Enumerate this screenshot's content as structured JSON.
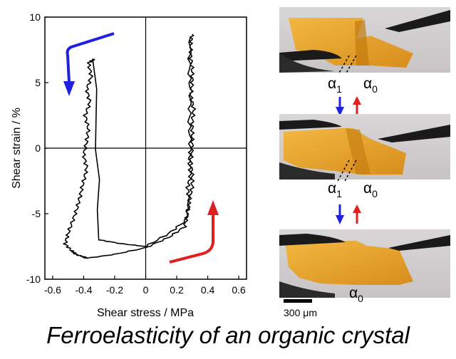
{
  "chart_data": {
    "type": "line",
    "xlabel": "Shear stress / MPa",
    "ylabel": "Shear strain / %",
    "xlim": [
      -0.65,
      0.65
    ],
    "ylim": [
      -10,
      10
    ],
    "xticks": [
      -0.6,
      -0.4,
      -0.2,
      0,
      0.2,
      0.4,
      0.6
    ],
    "xtick_labels": [
      "-0.6",
      "-0.4",
      "-0.2",
      "0",
      "0.2",
      "0.4",
      "0.6"
    ],
    "yticks": [
      -10,
      -5,
      0,
      5,
      10
    ],
    "ytick_labels": [
      "-10",
      "-5",
      "0",
      "5",
      "10"
    ],
    "grid": false,
    "series": [
      {
        "color": "#000000",
        "x": [
          0.3,
          0.29,
          0.29,
          0.3,
          0.3,
          0.29,
          0.31,
          0.3,
          0.3,
          0.3,
          0.29,
          0.3,
          0.3,
          0.28,
          0.26,
          0.15,
          0.0,
          -0.15,
          -0.3,
          -0.33,
          -0.37,
          -0.35,
          -0.38,
          -0.36,
          -0.39,
          -0.37,
          -0.38,
          -0.4,
          -0.38,
          -0.4,
          -0.42,
          -0.44,
          -0.47,
          -0.5,
          -0.52,
          -0.48,
          -0.45,
          -0.4,
          -0.38,
          -0.2,
          0.0,
          0.15,
          0.25,
          0.27,
          0.28,
          0.27,
          0.29,
          0.28,
          0.29,
          0.28,
          0.29,
          0.28,
          0.29
        ],
        "y": [
          8.7,
          8.0,
          7.0,
          6.0,
          5.0,
          4.0,
          3.0,
          2.0,
          1.0,
          0.0,
          -1.0,
          -2.0,
          -3.0,
          -4.0,
          -5.5,
          -6.5,
          -7.5,
          -7.3,
          -7.0,
          6.8,
          6.5,
          5.5,
          4.5,
          3.5,
          2.5,
          1.5,
          0.5,
          -0.5,
          -1.5,
          -2.5,
          -3.5,
          -4.5,
          -5.5,
          -6.5,
          -7.3,
          -7.8,
          -8.1,
          -8.3,
          -8.4,
          -8.1,
          -7.6,
          -6.8,
          -6.0,
          -5.0,
          -4.0,
          -3.0,
          -2.0,
          -1.0,
          0.0,
          2.0,
          4.0,
          6.0,
          8.5
        ]
      }
    ],
    "arrows": [
      {
        "color": "#2020e0",
        "meaning": "loading direction"
      },
      {
        "color": "#e02020",
        "meaning": "unloading direction"
      }
    ]
  },
  "photos": {
    "panel1": {
      "labels": [
        "α",
        "α"
      ],
      "subscripts": [
        "1",
        "0"
      ]
    },
    "panel2": {
      "labels": [
        "α",
        "α"
      ],
      "subscripts": [
        "1",
        "0"
      ]
    },
    "panel3": {
      "labels": [
        "α"
      ],
      "subscripts": [
        "0"
      ]
    }
  },
  "scalebar": {
    "label": "300 μm"
  },
  "colors": {
    "blue_arrow": "#2020e0",
    "red_arrow": "#e02020",
    "crystal": "#e8a020",
    "background": "#ffffff"
  },
  "caption": "Ferroelasticity of an organic crystal"
}
